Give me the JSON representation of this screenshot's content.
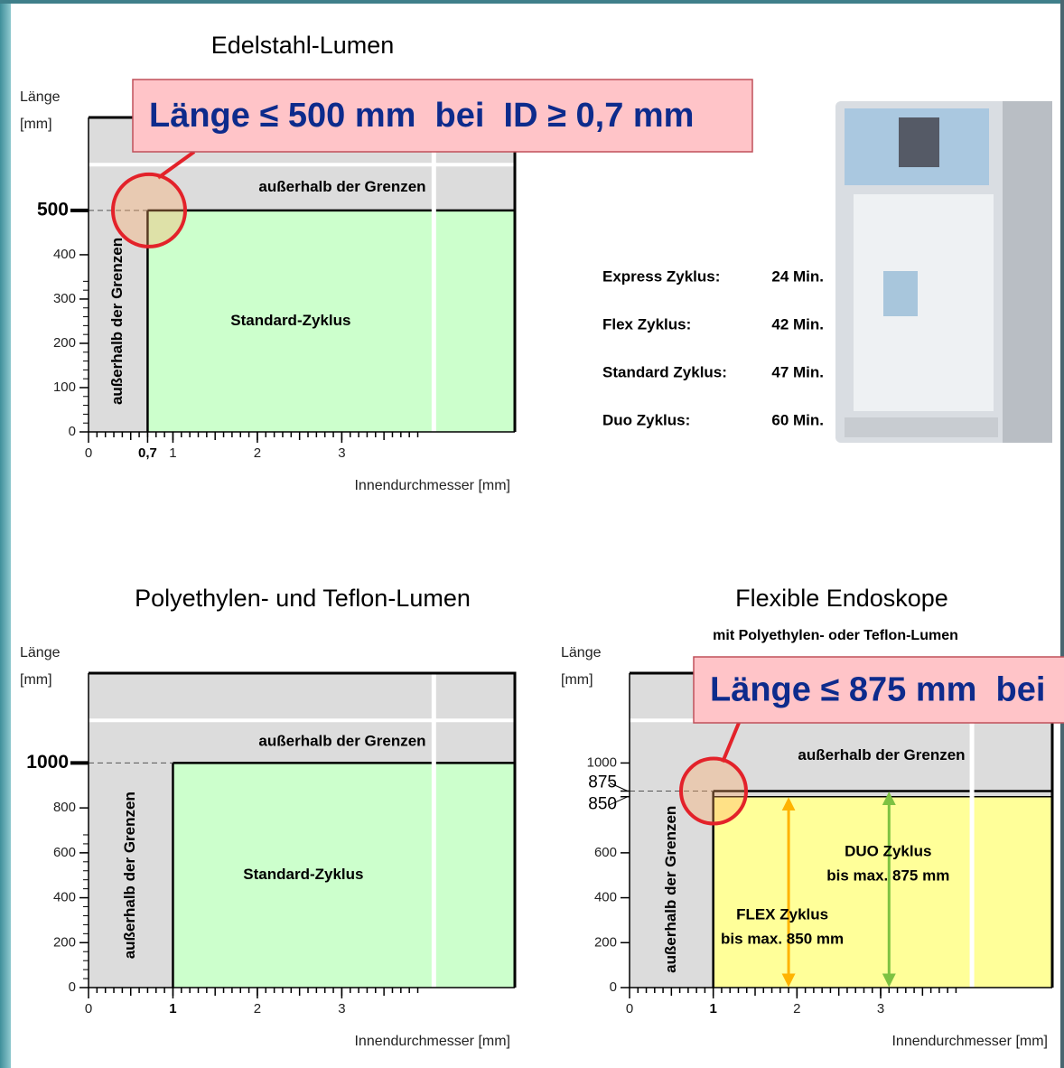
{
  "chart_data": [
    {
      "type": "region",
      "title": "Edelstahl-Lumen",
      "xlabel": "Innendurchmesser [mm]",
      "ylabel": [
        "Länge",
        "[mm]"
      ],
      "xlim": [
        0,
        5.05
      ],
      "ylim": [
        0,
        710
      ],
      "xticks": [
        0,
        {
          "value": 0.7,
          "label": "0,7"
        },
        1,
        2,
        3
      ],
      "yticks": [
        0,
        100,
        200,
        300,
        400,
        500
      ],
      "boundary": {
        "x": 0.7,
        "y": 500
      },
      "color": "#ccffcc",
      "region_labels": {
        "outside_top": "außerhalb der Grenzen",
        "outside_left": "außerhalb der Grenzen",
        "inside": "Standard-Zyklus"
      },
      "callout": "Länge ≤ 500 mm  bei  ID ≥ 0,7 mm",
      "cycles": [
        {
          "name": "Express Zyklus:",
          "time": "24 Min."
        },
        {
          "name": "Flex Zyklus:",
          "time": "42 Min."
        },
        {
          "name": "Standard Zyklus:",
          "time": "47 Min."
        },
        {
          "name": "Duo Zyklus:",
          "time": "60 Min."
        }
      ]
    },
    {
      "type": "region",
      "title": "Polyethylen- und Teflon-Lumen",
      "xlabel": "Innendurchmesser [mm]",
      "ylabel": [
        "Länge",
        "[mm]"
      ],
      "xlim": [
        0,
        5.05
      ],
      "ylim": [
        0,
        1400
      ],
      "xticks": [
        0,
        1,
        2,
        3
      ],
      "yticks": [
        0,
        200,
        400,
        600,
        800,
        1000
      ],
      "boundary": {
        "x": 1,
        "y": 1000
      },
      "color": "#ccffcc",
      "region_labels": {
        "outside_top": "außerhalb der Grenzen",
        "outside_left": "außerhalb der Grenzen",
        "inside": "Standard-Zyklus"
      }
    },
    {
      "type": "region",
      "title": "Flexible Endoskope",
      "subtitle": "mit Polyethylen- oder Teflon-Lumen",
      "xlabel": "Innendurchmesser [mm]",
      "ylabel": [
        "Länge",
        "[mm]"
      ],
      "xlim": [
        0,
        5.05
      ],
      "ylim": [
        0,
        1400
      ],
      "xticks": [
        0,
        1,
        2,
        3
      ],
      "yticks": [
        0,
        200,
        400,
        600,
        850,
        875,
        1000
      ],
      "boundary": {
        "x": 1,
        "y": 875
      },
      "color": "#ffff99",
      "region_labels": {
        "outside_top": "außerhalb der Grenzen",
        "outside_left": "außerhalb der Grenzen"
      },
      "series": [
        {
          "name": "FLEX  Zyklus",
          "label": "bis max. 850 mm",
          "value": 850,
          "color": "#ffb300"
        },
        {
          "name": "DUO  Zyklus",
          "label": "bis max. 875 mm",
          "value": 875,
          "color": "#7dc242"
        }
      ],
      "callout": "Länge ≤ 875 mm  bei"
    }
  ]
}
